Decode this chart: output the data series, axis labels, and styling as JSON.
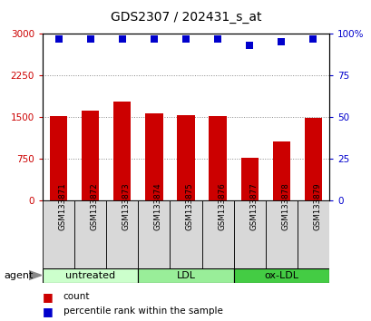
{
  "title": "GDS2307 / 202431_s_at",
  "samples": [
    "GSM133871",
    "GSM133872",
    "GSM133873",
    "GSM133874",
    "GSM133875",
    "GSM133876",
    "GSM133877",
    "GSM133878",
    "GSM133879"
  ],
  "counts": [
    1520,
    1620,
    1780,
    1570,
    1540,
    1520,
    770,
    1060,
    1490
  ],
  "percentiles": [
    97,
    97,
    97,
    97,
    97,
    97,
    93,
    95,
    97
  ],
  "ylim_left": [
    0,
    3000
  ],
  "ylim_right": [
    0,
    100
  ],
  "yticks_left": [
    0,
    750,
    1500,
    2250,
    3000
  ],
  "yticks_right": [
    0,
    25,
    50,
    75,
    100
  ],
  "yticklabels_right": [
    "0",
    "25",
    "50",
    "75",
    "100%"
  ],
  "bar_color": "#cc0000",
  "dot_color": "#0000cc",
  "groups": [
    {
      "label": "untreated",
      "start": 0,
      "end": 3,
      "color": "#ccffcc"
    },
    {
      "label": "LDL",
      "start": 3,
      "end": 6,
      "color": "#99ee99"
    },
    {
      "label": "ox-LDL",
      "start": 6,
      "end": 9,
      "color": "#44cc44"
    }
  ],
  "agent_label": "agent",
  "legend_count_label": "count",
  "legend_pct_label": "percentile rank within the sample",
  "bar_width": 0.55,
  "dot_size": 30,
  "grid_color": "#888888",
  "axis_label_color_left": "#cc0000",
  "axis_label_color_right": "#0000cc",
  "background_color": "#ffffff"
}
